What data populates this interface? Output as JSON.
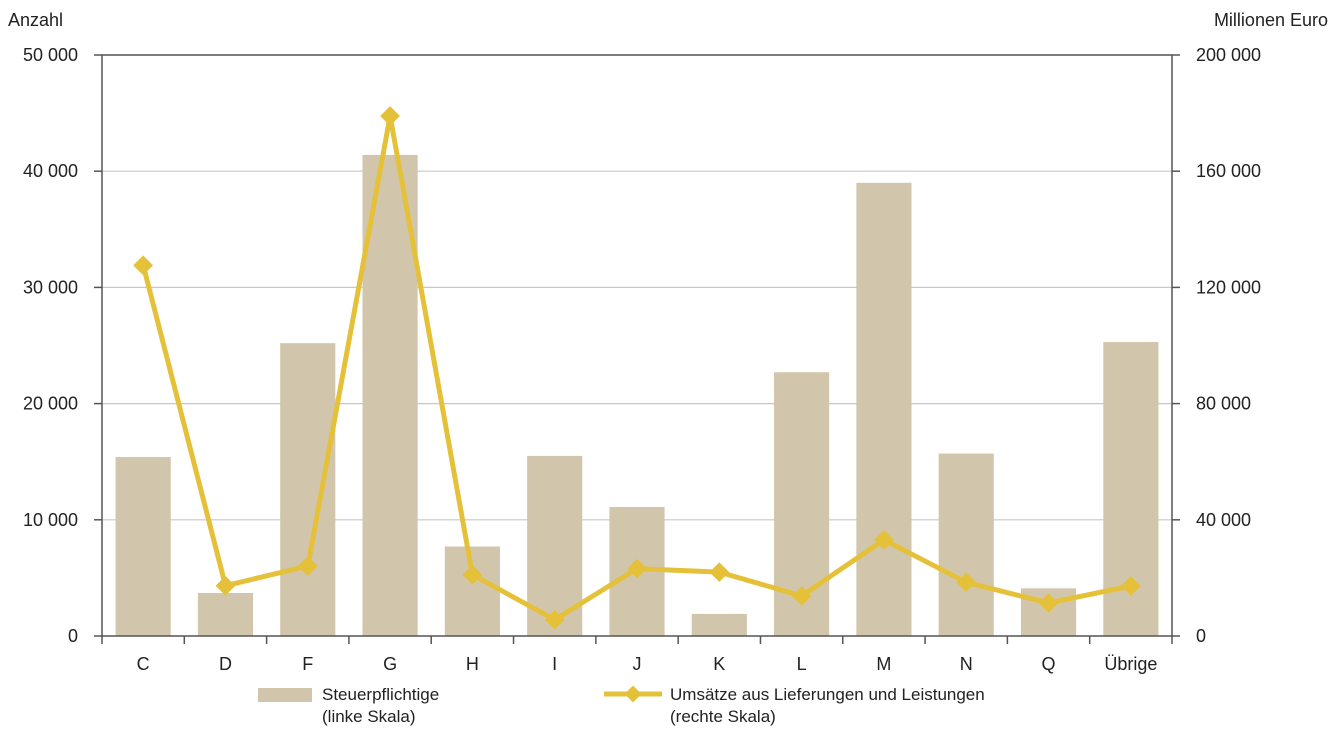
{
  "chart_data": {
    "type": "bar",
    "categories": [
      "C",
      "D",
      "F",
      "G",
      "H",
      "I",
      "J",
      "K",
      "L",
      "M",
      "N",
      "Q",
      "Übrige"
    ],
    "series": [
      {
        "name": "Steuerpflichtige (linke Skala)",
        "type": "bar",
        "axis": "left",
        "color": "#d1c6ab",
        "values": [
          15400,
          3700,
          25200,
          41400,
          7700,
          15500,
          11100,
          1900,
          22700,
          39000,
          15700,
          4100,
          25300
        ]
      },
      {
        "name": "Umsätze aus Lieferungen und Leistungen (rechte Skala)",
        "type": "line",
        "axis": "right",
        "color": "#e5c13a",
        "values": [
          127600,
          17300,
          24100,
          179000,
          21100,
          5600,
          23200,
          22000,
          13800,
          33100,
          18500,
          11400,
          17200
        ]
      }
    ],
    "yleft": {
      "label": "Anzahl",
      "range": [
        0,
        50000
      ],
      "ticks": [
        0,
        10000,
        20000,
        30000,
        40000,
        50000
      ],
      "tick_labels": [
        "0",
        "10 000",
        "20 000",
        "30 000",
        "40 000",
        "50 000"
      ]
    },
    "yright": {
      "label": "Millionen Euro",
      "range": [
        0,
        200000
      ],
      "ticks": [
        0,
        40000,
        80000,
        120000,
        160000,
        200000
      ],
      "tick_labels": [
        "0",
        "40 000",
        "80 000",
        "120 000",
        "160 000",
        "200 000"
      ]
    },
    "grid": true,
    "legend": {
      "placement": "bottom",
      "items": [
        {
          "line1": "Steuerpflichtige",
          "line2": "(linke Skala)",
          "kind": "bar"
        },
        {
          "line1": "Umsätze aus Lieferungen und Leistungen",
          "line2": "(rechte Skala)",
          "kind": "line"
        }
      ]
    },
    "colors": {
      "bar": "#d1c6ab",
      "line": "#e5c13a",
      "grid": "#c8c8c8",
      "axis": "#555555"
    }
  }
}
